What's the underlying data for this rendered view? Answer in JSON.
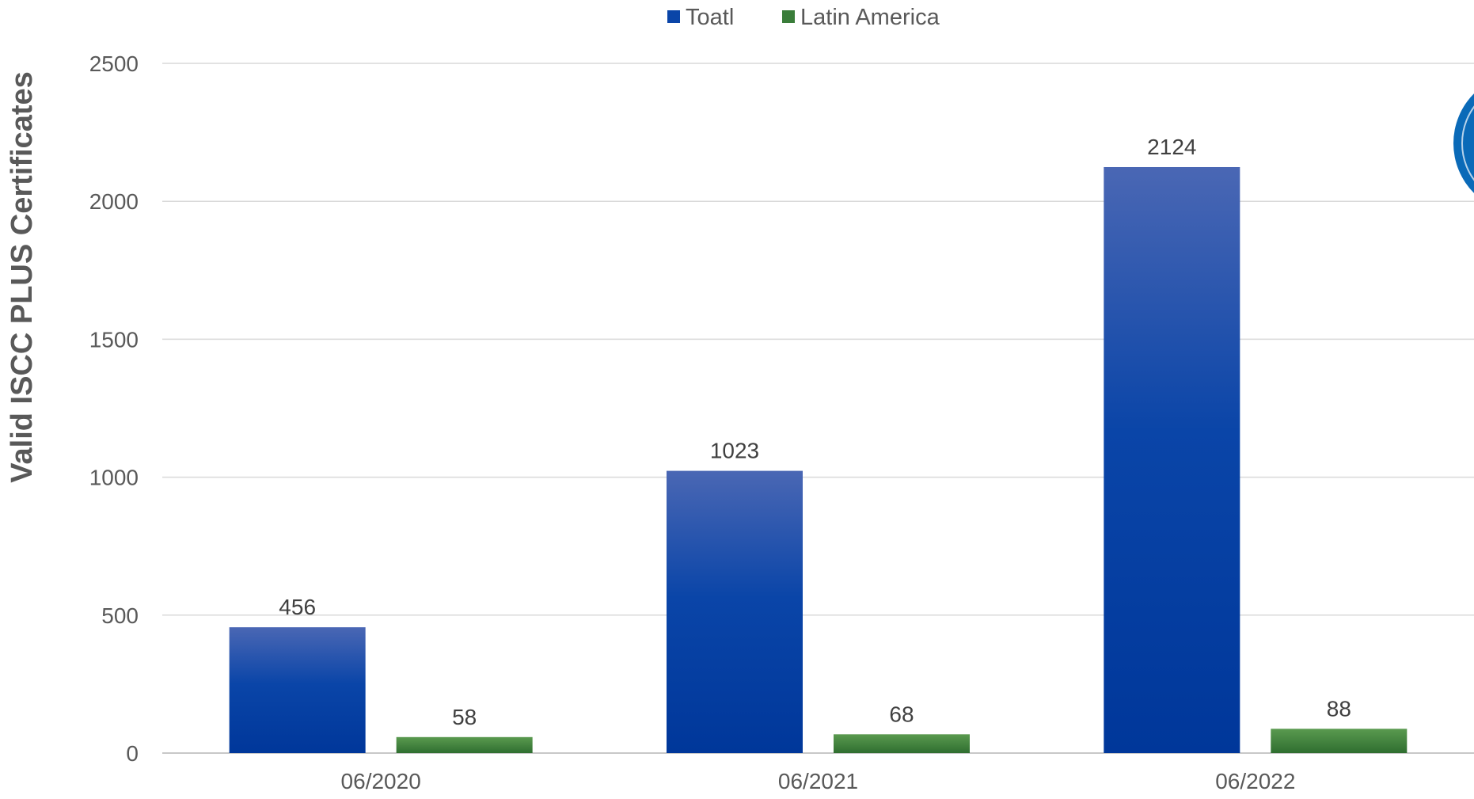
{
  "chart_data": {
    "type": "bar",
    "title": "",
    "xlabel": "",
    "ylabel": "Valid ISCC PLUS Certificates",
    "categories": [
      "06/2020",
      "06/2021",
      "06/2022"
    ],
    "series": [
      {
        "name": "Toatl",
        "values": [
          456,
          1023,
          2124
        ],
        "color": "#0a3fa0"
      },
      {
        "name": "Latin America",
        "values": [
          58,
          68,
          88
        ],
        "color": "#3a7d3a"
      }
    ],
    "ylim": [
      0,
      2500
    ],
    "yticks": [
      0,
      500,
      1000,
      1500,
      2000,
      2500
    ],
    "grid": true,
    "legend_position": "top-center",
    "data_labels": true
  }
}
